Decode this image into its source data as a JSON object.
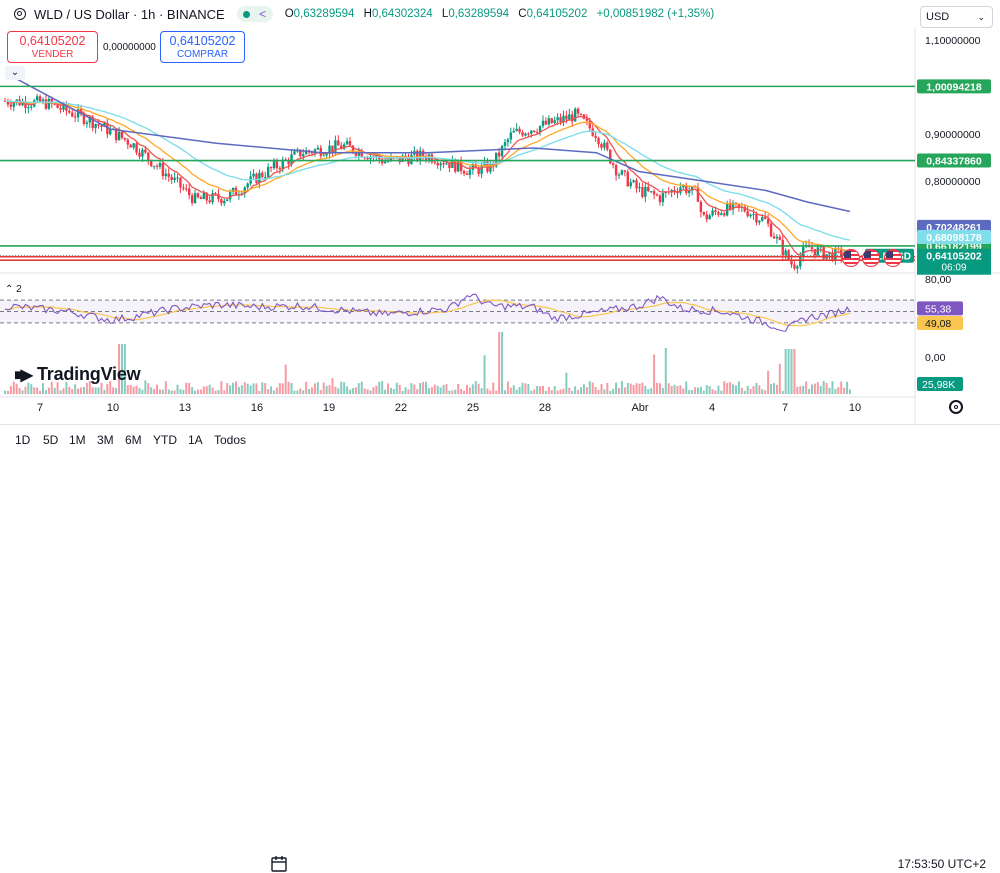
{
  "header": {
    "symbol": "WLD / US Dollar · 1h · BINANCE",
    "ohlc": [
      {
        "k": "O",
        "v": "0,63289594"
      },
      {
        "k": "H",
        "v": "0,64302324"
      },
      {
        "k": "L",
        "v": "0,63289594"
      },
      {
        "k": "C",
        "v": "0,64105202"
      },
      {
        "k": "",
        "v": "+0,00851982 (+1,35%)"
      }
    ]
  },
  "trade": {
    "sell_price": "0,64105202",
    "sell_label": "VENDER",
    "spread": "0,00000000",
    "buy_price": "0,64105202",
    "buy_label": "COMPRAR"
  },
  "currency": "USD",
  "rsi_label": "2",
  "brand": "TradingView",
  "timeframes": [
    "1D",
    "5D",
    "1M",
    "3M",
    "6M",
    "YTD",
    "1A",
    "Todos"
  ],
  "clock": "17:53:50 UTC+2",
  "colors": {
    "up": "#089981",
    "down": "#f23645",
    "ema_fast": "#ef5350",
    "ema_mid": "#ffa726",
    "ema_slow": "#80deea",
    "ma_long": "#5c6bc0",
    "rsi": "#7e57c2",
    "rsi_ma": "#f9c74f",
    "hline_green": "#26a65b",
    "hline_red": "#e53935"
  },
  "chart_data": {
    "type": "candlestick",
    "symbol": "WLDUSD",
    "current_price": "0,64105202",
    "countdown": "06:09",
    "price_axis_ticks": [
      "1,10000000",
      "0,90000000",
      "0,80000000"
    ],
    "x_ticks": [
      "7",
      "10",
      "13",
      "16",
      "19",
      "22",
      "25",
      "28",
      "Abr",
      "4",
      "7",
      "10"
    ],
    "horizontal_levels": [
      {
        "value": 1.00094218,
        "label": "1,00094218",
        "color": "#26a65b"
      },
      {
        "value": 0.8433786,
        "label": "0,84337860",
        "color": "#26a65b"
      },
      {
        "value": 0.66182199,
        "label": "0,66182199",
        "color": "#26a65b"
      },
      {
        "value": 0.6391368,
        "label": "0,63913680",
        "color": "#e53935"
      },
      {
        "value": 0.63150528,
        "label": "0,63150528",
        "color": "#e53935"
      }
    ],
    "indicator_labels": [
      {
        "value": 0.70248261,
        "label": "0,70248261",
        "color": "#5c6bc0"
      },
      {
        "value": 0.68098178,
        "label": "0,68098178",
        "color": "#80deea"
      },
      {
        "value": 0.64105202,
        "label": "0,64105202",
        "color": "#089981"
      }
    ],
    "ylim": [
      0.615,
      1.125
    ],
    "close_path": [
      [
        0,
        0.97
      ],
      [
        2,
        0.965
      ],
      [
        4,
        0.93
      ],
      [
        6,
        0.88
      ],
      [
        8,
        0.8
      ],
      [
        9,
        0.76
      ],
      [
        10.5,
        0.765
      ],
      [
        12,
        0.81
      ],
      [
        14,
        0.86
      ],
      [
        16,
        0.875
      ],
      [
        17,
        0.86
      ],
      [
        18,
        0.842
      ],
      [
        20,
        0.855
      ],
      [
        22,
        0.822
      ],
      [
        23,
        0.83
      ],
      [
        24,
        0.9
      ],
      [
        26,
        0.925
      ],
      [
        27,
        0.94
      ],
      [
        28,
        0.9
      ],
      [
        29,
        0.82
      ],
      [
        30,
        0.78
      ],
      [
        31,
        0.765
      ],
      [
        32,
        0.79
      ],
      [
        32.8,
        0.77
      ],
      [
        33,
        0.72
      ],
      [
        34,
        0.74
      ],
      [
        35,
        0.74
      ],
      [
        36,
        0.715
      ],
      [
        37,
        0.64
      ],
      [
        37.3,
        0.62
      ],
      [
        38,
        0.66
      ],
      [
        39,
        0.642
      ],
      [
        39.5,
        0.645
      ],
      [
        40,
        0.641
      ]
    ],
    "moving_average_long": [
      [
        0,
        1.03
      ],
      [
        5,
        0.91
      ],
      [
        10,
        0.88
      ],
      [
        15,
        0.86
      ],
      [
        20,
        0.86
      ],
      [
        25,
        0.87
      ],
      [
        28,
        0.86
      ],
      [
        30,
        0.82
      ],
      [
        33,
        0.8
      ],
      [
        36,
        0.78
      ],
      [
        38,
        0.755
      ],
      [
        40,
        0.735
      ]
    ],
    "rsi": {
      "value": "55,38",
      "ma_value": "49,08",
      "levels": [
        "80,00",
        "0,00"
      ],
      "ylim": [
        0,
        100
      ],
      "path": [
        [
          0,
          60
        ],
        [
          3,
          50
        ],
        [
          5,
          35
        ],
        [
          6,
          40
        ],
        [
          8,
          55
        ],
        [
          10,
          62
        ],
        [
          12,
          58
        ],
        [
          14,
          60
        ],
        [
          16,
          52
        ],
        [
          18,
          45
        ],
        [
          21,
          55
        ],
        [
          22,
          80
        ],
        [
          23,
          60
        ],
        [
          25,
          58
        ],
        [
          26,
          38
        ],
        [
          28,
          48
        ],
        [
          30,
          60
        ],
        [
          31,
          75
        ],
        [
          32,
          55
        ],
        [
          34,
          50
        ],
        [
          36,
          30
        ],
        [
          37,
          18
        ],
        [
          38,
          40
        ],
        [
          39,
          45
        ],
        [
          40,
          55
        ]
      ]
    },
    "volume_label": "25,98K"
  }
}
